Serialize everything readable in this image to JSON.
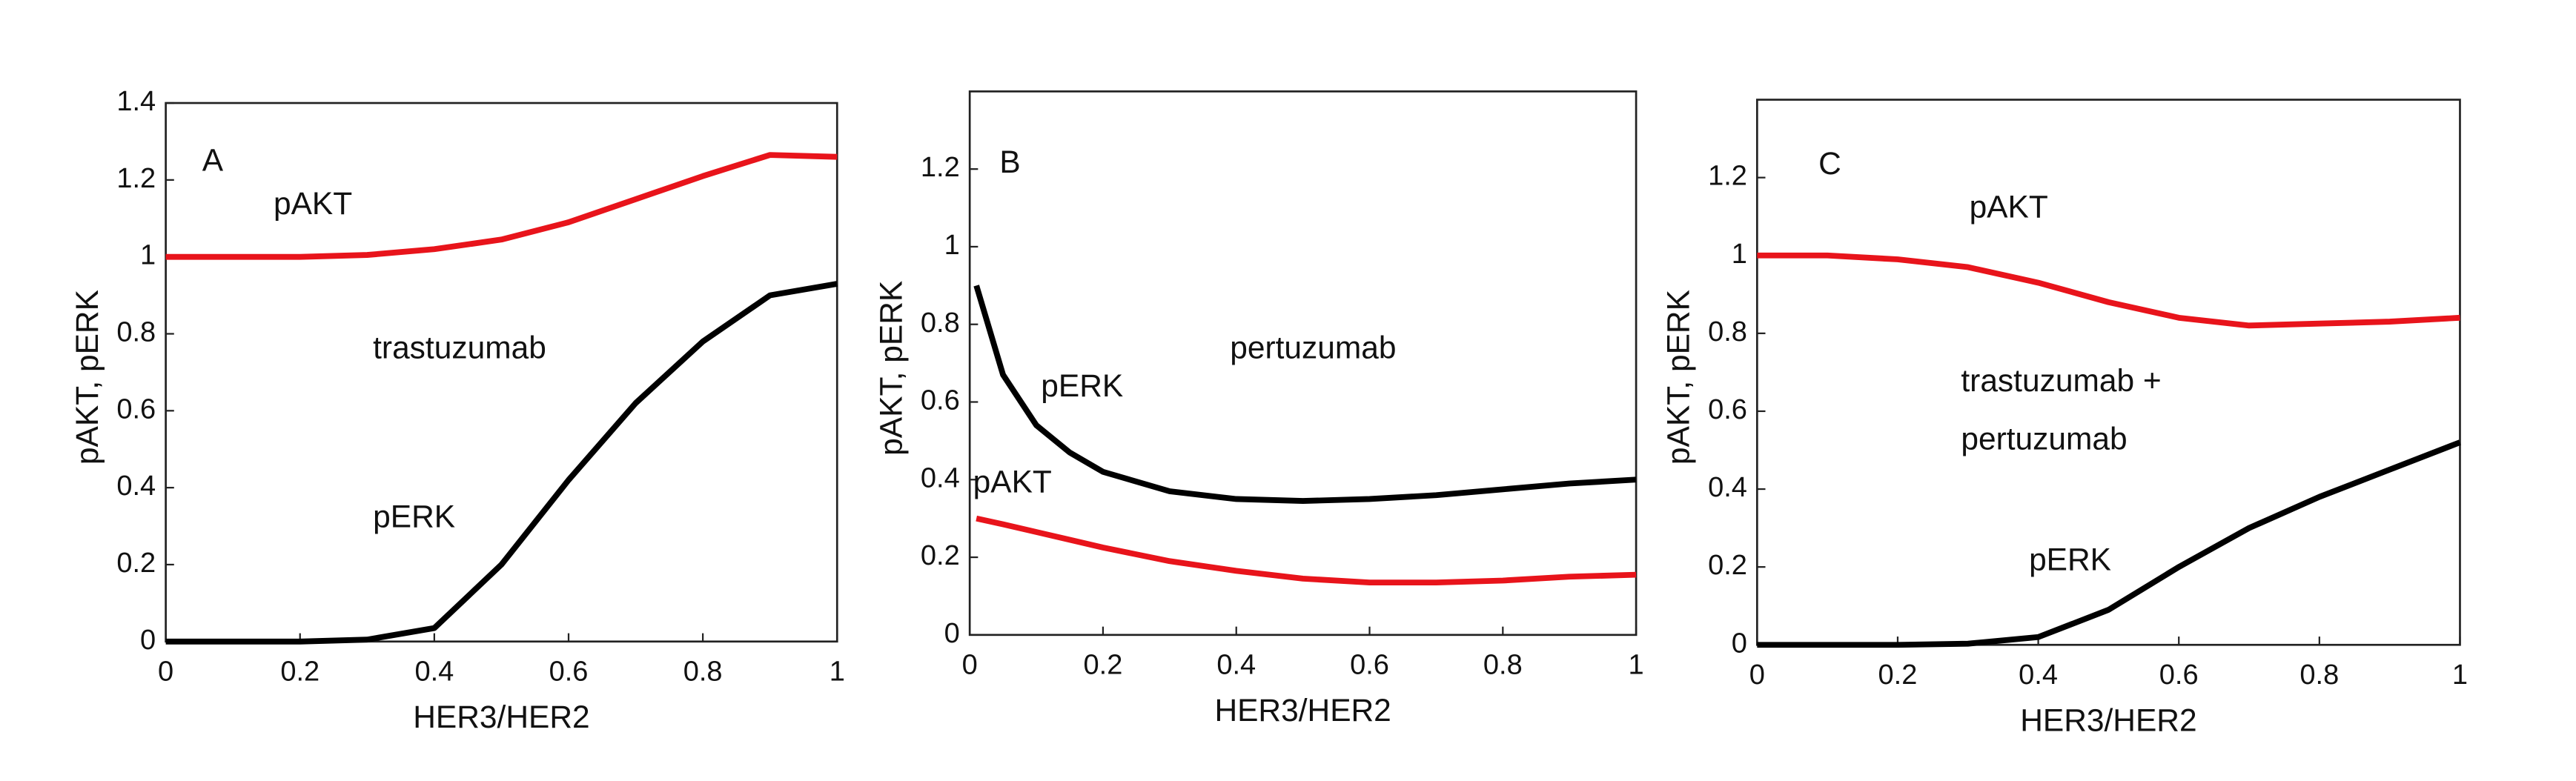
{
  "chart_data": [
    {
      "type": "line",
      "xlabel": "HER3/HER2",
      "ylabel": "pAKT, pERK",
      "annotations": [
        "A",
        "trastuzumab"
      ],
      "xlim": [
        0,
        1
      ],
      "ylim": [
        0,
        1.4
      ],
      "xticks": [
        0,
        0.2,
        0.4,
        0.6,
        0.8,
        1
      ],
      "yticks": [
        0,
        0.2,
        0.4,
        0.6,
        0.8,
        1,
        1.2,
        1.4
      ],
      "x": [
        0,
        0.1,
        0.2,
        0.3,
        0.4,
        0.5,
        0.6,
        0.7,
        0.8,
        0.9,
        1
      ],
      "series": [
        {
          "name": "pAKT",
          "color": "#e8141b",
          "values": [
            1.0,
            1.0,
            1.0,
            1.005,
            1.02,
            1.045,
            1.09,
            1.15,
            1.21,
            1.265,
            1.26
          ]
        },
        {
          "name": "pERK",
          "color": "#000000",
          "values": [
            0,
            0,
            0,
            0.005,
            0.035,
            0.2,
            0.42,
            0.62,
            0.78,
            0.9,
            0.93
          ]
        }
      ]
    },
    {
      "type": "line",
      "xlabel": "HER3/HER2",
      "ylabel": "pAKT, pERK",
      "annotations": [
        "B",
        "pertuzumab"
      ],
      "xlim": [
        0,
        1
      ],
      "ylim": [
        0,
        1.4
      ],
      "xticks": [
        0,
        0.2,
        0.4,
        0.6,
        0.8,
        1
      ],
      "yticks": [
        0,
        0.2,
        0.4,
        0.6,
        0.8,
        1,
        1.2
      ],
      "x": [
        0.01,
        0.05,
        0.1,
        0.15,
        0.2,
        0.3,
        0.4,
        0.5,
        0.6,
        0.7,
        0.8,
        0.9,
        1
      ],
      "series": [
        {
          "name": "pAKT",
          "color": "#e8141b",
          "values": [
            0.3,
            0.285,
            0.265,
            0.245,
            0.225,
            0.19,
            0.165,
            0.145,
            0.135,
            0.135,
            0.14,
            0.15,
            0.155
          ]
        },
        {
          "name": "pERK",
          "color": "#000000",
          "values": [
            0.9,
            0.67,
            0.54,
            0.47,
            0.42,
            0.37,
            0.35,
            0.345,
            0.35,
            0.36,
            0.375,
            0.39,
            0.4
          ]
        }
      ]
    },
    {
      "type": "line",
      "xlabel": "HER3/HER2",
      "ylabel": "pAKT, pERK",
      "annotations": [
        "C",
        "trastuzumab +",
        "pertuzumab"
      ],
      "xlim": [
        0,
        1
      ],
      "ylim": [
        0,
        1.4
      ],
      "xticks": [
        0,
        0.2,
        0.4,
        0.6,
        0.8,
        1
      ],
      "yticks": [
        0,
        0.2,
        0.4,
        0.6,
        0.8,
        1,
        1.2
      ],
      "x": [
        0,
        0.1,
        0.2,
        0.3,
        0.4,
        0.5,
        0.6,
        0.7,
        0.8,
        0.9,
        1
      ],
      "series": [
        {
          "name": "pAKT",
          "color": "#e8141b",
          "values": [
            1.0,
            1.0,
            0.99,
            0.97,
            0.93,
            0.88,
            0.84,
            0.82,
            0.825,
            0.83,
            0.84
          ]
        },
        {
          "name": "pERK",
          "color": "#000000",
          "values": [
            0,
            0,
            0,
            0.003,
            0.02,
            0.09,
            0.2,
            0.3,
            0.38,
            0.45,
            0.52
          ]
        }
      ]
    }
  ]
}
